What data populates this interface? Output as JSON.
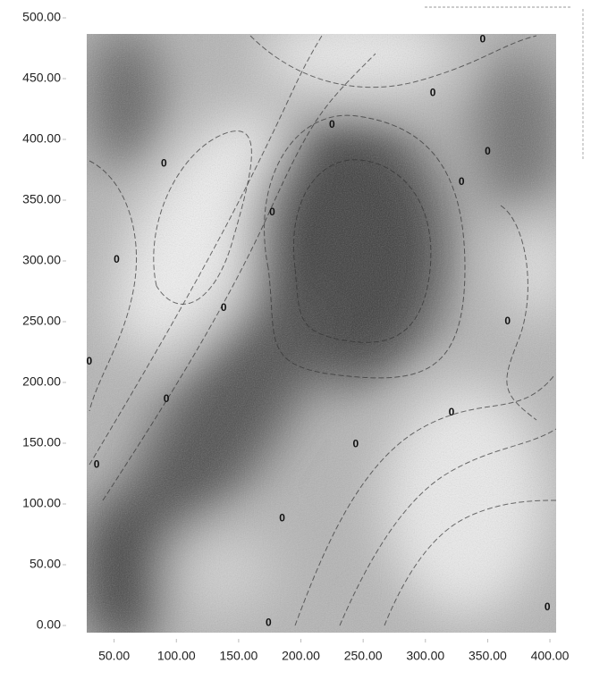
{
  "chart_data": {
    "type": "contour",
    "xlim": [
      28,
      405
    ],
    "ylim": [
      0,
      500
    ],
    "xticks": [
      {
        "value": 50,
        "label": "50.00"
      },
      {
        "value": 100,
        "label": "100.00"
      },
      {
        "value": 150,
        "label": "150.00"
      },
      {
        "value": 200,
        "label": "200.00"
      },
      {
        "value": 250,
        "label": "250.00"
      },
      {
        "value": 300,
        "label": "300.00"
      },
      {
        "value": 350,
        "label": "350.00"
      },
      {
        "value": 400,
        "label": "400.00"
      }
    ],
    "yticks": [
      {
        "value": 0,
        "label": "0.00"
      },
      {
        "value": 50,
        "label": "50.00"
      },
      {
        "value": 100,
        "label": "100.00"
      },
      {
        "value": 150,
        "label": "150.00"
      },
      {
        "value": 200,
        "label": "200.00"
      },
      {
        "value": 250,
        "label": "250.00"
      },
      {
        "value": 300,
        "label": "300.00"
      },
      {
        "value": 350,
        "label": "350.00"
      },
      {
        "value": 400,
        "label": "400.00"
      },
      {
        "value": 450,
        "label": "450.00"
      },
      {
        "value": 500,
        "label": "500.00"
      }
    ],
    "annotations": [
      {
        "x": 346,
        "y": 482,
        "text": "0"
      },
      {
        "x": 306,
        "y": 438,
        "text": "0"
      },
      {
        "x": 225,
        "y": 412,
        "text": "0"
      },
      {
        "x": 90,
        "y": 380,
        "text": "0"
      },
      {
        "x": 329,
        "y": 365,
        "text": "0"
      },
      {
        "x": 350,
        "y": 390,
        "text": "0"
      },
      {
        "x": 177,
        "y": 340,
        "text": "0"
      },
      {
        "x": 52,
        "y": 301,
        "text": "0"
      },
      {
        "x": 138,
        "y": 261,
        "text": "0"
      },
      {
        "x": 366,
        "y": 250,
        "text": "0"
      },
      {
        "x": 30,
        "y": 217,
        "text": "0"
      },
      {
        "x": 92,
        "y": 186,
        "text": "0"
      },
      {
        "x": 321,
        "y": 175,
        "text": "0"
      },
      {
        "x": 244,
        "y": 149,
        "text": "0"
      },
      {
        "x": 36,
        "y": 132,
        "text": "0"
      },
      {
        "x": 185,
        "y": 88,
        "text": "0"
      },
      {
        "x": 174,
        "y": 2,
        "text": "0"
      },
      {
        "x": 398,
        "y": 15,
        "text": "0"
      }
    ]
  }
}
